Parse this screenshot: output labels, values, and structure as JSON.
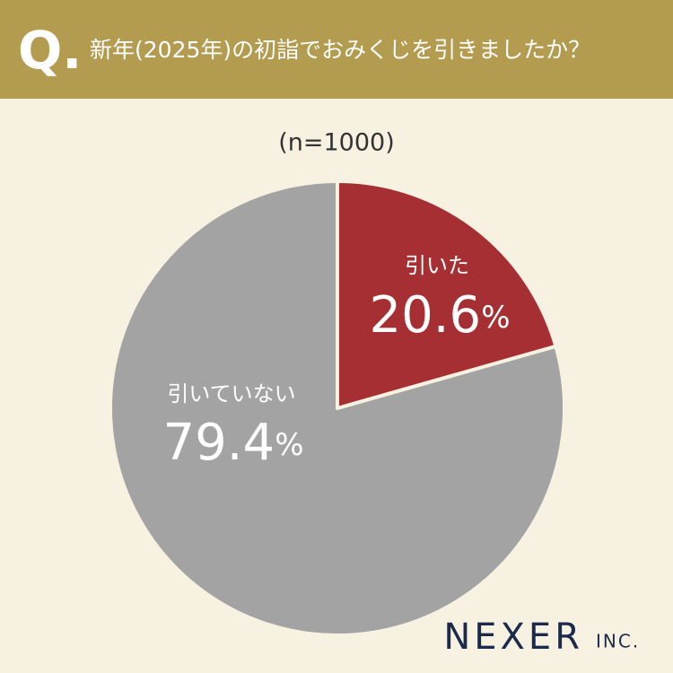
{
  "chart_data": {
    "type": "pie",
    "header_label": "Q.",
    "title": "新年(2025年)の初詣でおみくじを引きましたか？",
    "subtitle": "(n=1000)",
    "categories": [
      "引いた",
      "引いていない"
    ],
    "values": [
      20.6,
      79.4
    ],
    "value_labels": [
      "20.6%",
      "79.4%"
    ],
    "colors": [
      "#a52f32",
      "#a3a3a3"
    ],
    "logo": "NEXER",
    "logo_suffix": "INC."
  }
}
